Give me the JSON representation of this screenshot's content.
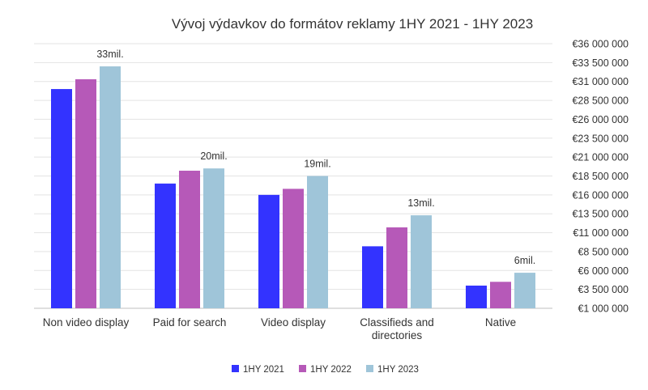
{
  "chart_data": {
    "type": "bar",
    "title": "Vývoj výdavkov do formátov reklamy 1HY 2021 - 1HY 2023",
    "categories": [
      "Non video display",
      "Paid for search",
      "Video display",
      "Classifieds and directories",
      "Native"
    ],
    "category_lines": [
      [
        "Non video display"
      ],
      [
        "Paid for search"
      ],
      [
        "Video display"
      ],
      [
        "Classifieds and",
        "directories"
      ],
      [
        "Native"
      ]
    ],
    "series": [
      {
        "name": "1HY 2021",
        "color": "#3333ff",
        "values": [
          30000000,
          17500000,
          16000000,
          9200000,
          4000000
        ]
      },
      {
        "name": "1HY 2022",
        "color": "#b659b8",
        "values": [
          31300000,
          19200000,
          16800000,
          11700000,
          4500000
        ]
      },
      {
        "name": "1HY 2023",
        "color": "#9fc5d9",
        "values": [
          33000000,
          19500000,
          18500000,
          13300000,
          5700000
        ]
      }
    ],
    "data_labels": [
      "33mil.",
      "20mil.",
      "19mil.",
      "13mil.",
      "6mil."
    ],
    "y_ticks": [
      {
        "value": 1000000,
        "label": "€1 000 000"
      },
      {
        "value": 3500000,
        "label": "€3 500 000"
      },
      {
        "value": 6000000,
        "label": "€6 000 000"
      },
      {
        "value": 8500000,
        "label": "€8 500 000"
      },
      {
        "value": 11000000,
        "label": "€11 000 000"
      },
      {
        "value": 13500000,
        "label": "€13 500 000"
      },
      {
        "value": 16000000,
        "label": "€16 000 000"
      },
      {
        "value": 18500000,
        "label": "€18 500 000"
      },
      {
        "value": 21000000,
        "label": "€21 000 000"
      },
      {
        "value": 23500000,
        "label": "€23 500 000"
      },
      {
        "value": 26000000,
        "label": "€26 000 000"
      },
      {
        "value": 28500000,
        "label": "€28 500 000"
      },
      {
        "value": 31000000,
        "label": "€31 000 000"
      },
      {
        "value": 33500000,
        "label": "€33 500 000"
      },
      {
        "value": 36000000,
        "label": "€36 000 000"
      }
    ],
    "ylim": [
      1000000,
      36000000
    ],
    "y_axis_side": "right",
    "grid": true,
    "legend": "bottom-center"
  }
}
